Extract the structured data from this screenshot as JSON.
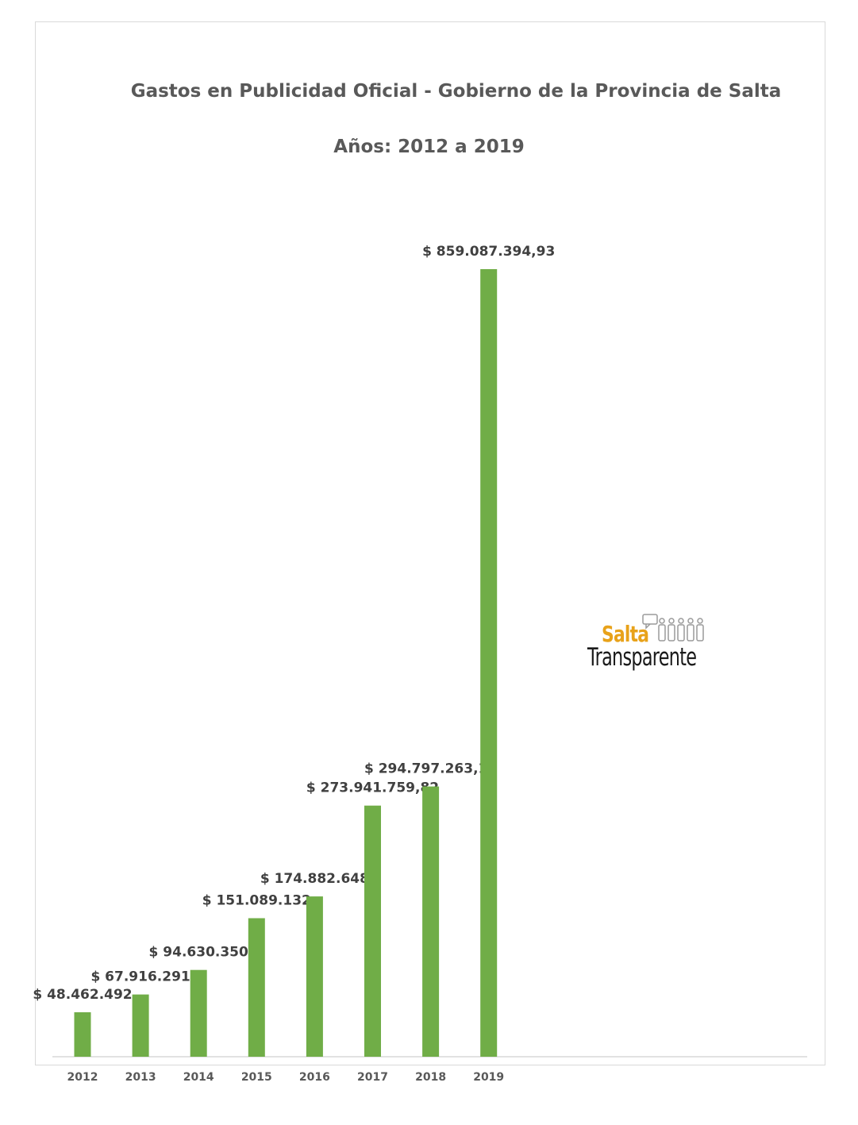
{
  "chart_data": {
    "type": "bar",
    "title": "Gastos en Publicidad Oficial - Gobierno de la Provincia de Salta",
    "subtitle": "Años: 2012 a 2019",
    "xlabel": "",
    "ylabel": "",
    "categories": [
      "2012",
      "2013",
      "2014",
      "2015",
      "2016",
      "2017",
      "2018",
      "2019"
    ],
    "values": [
      48462492,
      67916291,
      94630350,
      151089132,
      174882648,
      273941759.82,
      294797263.19,
      859087394.93
    ],
    "data_labels": [
      "$ 48.462.492",
      "$ 67.916.291",
      "$ 94.630.350",
      "$ 151.089.132",
      "$ 174.882.648",
      "$ 273.941.759,82",
      "$ 294.797.263,19",
      "$ 859.087.394,93"
    ],
    "ylim": [
      0,
      859087394.93
    ],
    "grid": false,
    "bar_color": "#70ad47"
  },
  "logo": {
    "line1": "Salta",
    "line2": "Transparente",
    "accent_color": "#e8a21a"
  }
}
